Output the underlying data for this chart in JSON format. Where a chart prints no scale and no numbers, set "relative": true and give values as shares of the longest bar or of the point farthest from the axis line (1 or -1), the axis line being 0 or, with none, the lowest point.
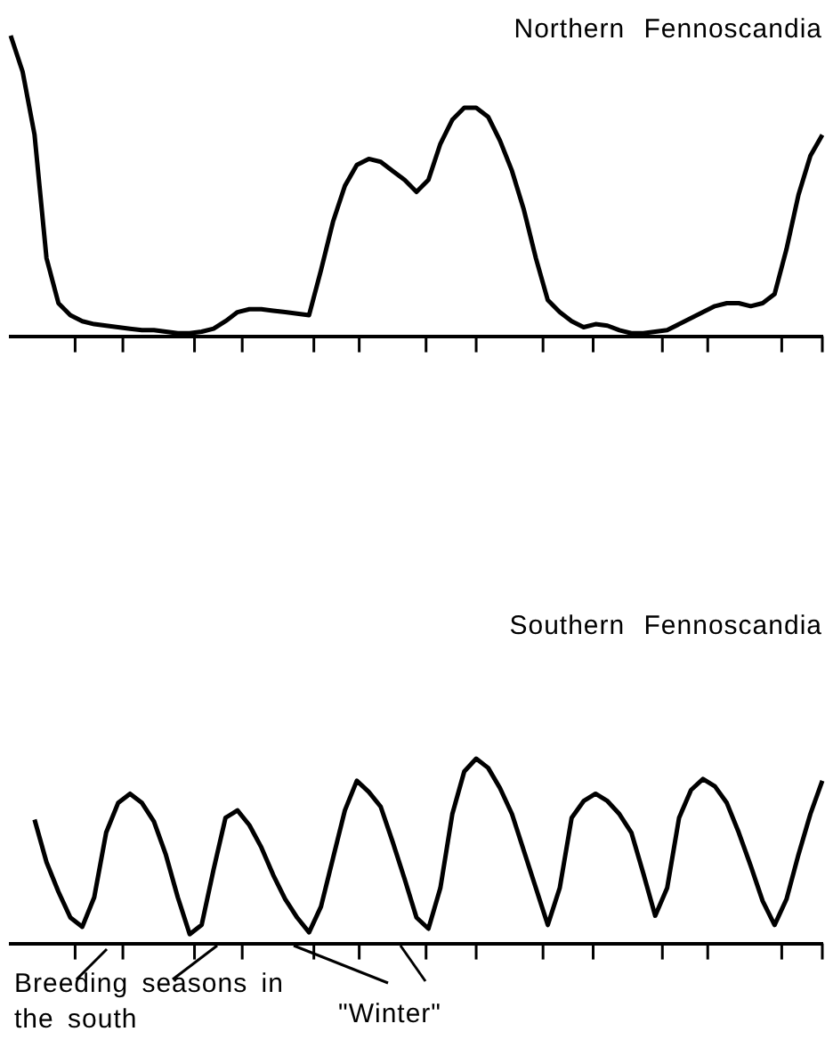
{
  "chart_data": [
    {
      "type": "line",
      "title": "Northern Fennoscandia",
      "relative": true,
      "categories": [
        null,
        null,
        null,
        null,
        null,
        null,
        null,
        null,
        null,
        null,
        null,
        null,
        null,
        null,
        null,
        null,
        null,
        null,
        null,
        null,
        null,
        null,
        null,
        null,
        null,
        null,
        null,
        null,
        null,
        null,
        null,
        null,
        null,
        null,
        null,
        null,
        null,
        null,
        null,
        null,
        null,
        null,
        null,
        null,
        null,
        null,
        null,
        null,
        null,
        null,
        null,
        null,
        null,
        null,
        null,
        null,
        null,
        null,
        null,
        null,
        null,
        null,
        null,
        null,
        null,
        null,
        null,
        null,
        null
      ],
      "series": [
        {
          "color": "#000000",
          "values": [
            1,
            0.88,
            0.67,
            0.26,
            0.11,
            0.07,
            0.05,
            0.04,
            0.035,
            0.03,
            0.025,
            0.02,
            0.02,
            0.015,
            0.01,
            0.01,
            0.015,
            0.025,
            0.05,
            0.08,
            0.09,
            0.09,
            0.085,
            0.08,
            0.075,
            0.07,
            0.22,
            0.38,
            0.5,
            0.57,
            0.59,
            0.58,
            0.55,
            0.52,
            0.48,
            0.52,
            0.64,
            0.72,
            0.76,
            0.76,
            0.73,
            0.65,
            0.55,
            0.42,
            0.26,
            0.12,
            0.08,
            0.05,
            0.03,
            0.04,
            0.035,
            0.02,
            0.01,
            0.01,
            0.015,
            0.02,
            0.04,
            0.06,
            0.08,
            0.1,
            0.11,
            0.11,
            0.1,
            0.11,
            0.14,
            0.29,
            0.47,
            0.6,
            0.67
          ]
        }
      ]
    },
    {
      "type": "line",
      "title": "Southern Fennoscandia",
      "relative": true,
      "categories": [
        null,
        null,
        null,
        null,
        null,
        null,
        null,
        null,
        null,
        null,
        null,
        null,
        null,
        null,
        null,
        null,
        null,
        null,
        null,
        null,
        null,
        null,
        null,
        null,
        null,
        null,
        null,
        null,
        null,
        null,
        null,
        null,
        null,
        null,
        null,
        null,
        null,
        null,
        null,
        null,
        null,
        null,
        null,
        null,
        null,
        null,
        null,
        null,
        null,
        null,
        null,
        null,
        null,
        null,
        null,
        null,
        null,
        null,
        null,
        null,
        null,
        null,
        null,
        null,
        null,
        null,
        null,
        null,
        null
      ],
      "annotations": [
        "Breeding seasons in the south",
        "\"Winter\""
      ],
      "series": [
        {
          "color": "#000000",
          "values": [
            null,
            null,
            0.67,
            0.44,
            0.28,
            0.14,
            0.09,
            0.25,
            0.6,
            0.76,
            0.81,
            0.76,
            0.66,
            0.48,
            0.25,
            0.05,
            0.1,
            0.4,
            0.68,
            0.72,
            0.64,
            0.52,
            0.37,
            0.24,
            0.14,
            0.06,
            0.2,
            0.46,
            0.72,
            0.88,
            0.82,
            0.74,
            0.55,
            0.35,
            0.14,
            0.08,
            0.3,
            0.7,
            0.93,
            1,
            0.95,
            0.84,
            0.7,
            0.5,
            0.3,
            0.1,
            0.3,
            0.68,
            0.77,
            0.81,
            0.77,
            0.7,
            0.6,
            0.38,
            0.15,
            0.3,
            0.68,
            0.83,
            0.89,
            0.85,
            0.76,
            0.6,
            0.42,
            0.23,
            0.1,
            0.24,
            0.48,
            0.7,
            0.88
          ]
        }
      ]
    }
  ]
}
